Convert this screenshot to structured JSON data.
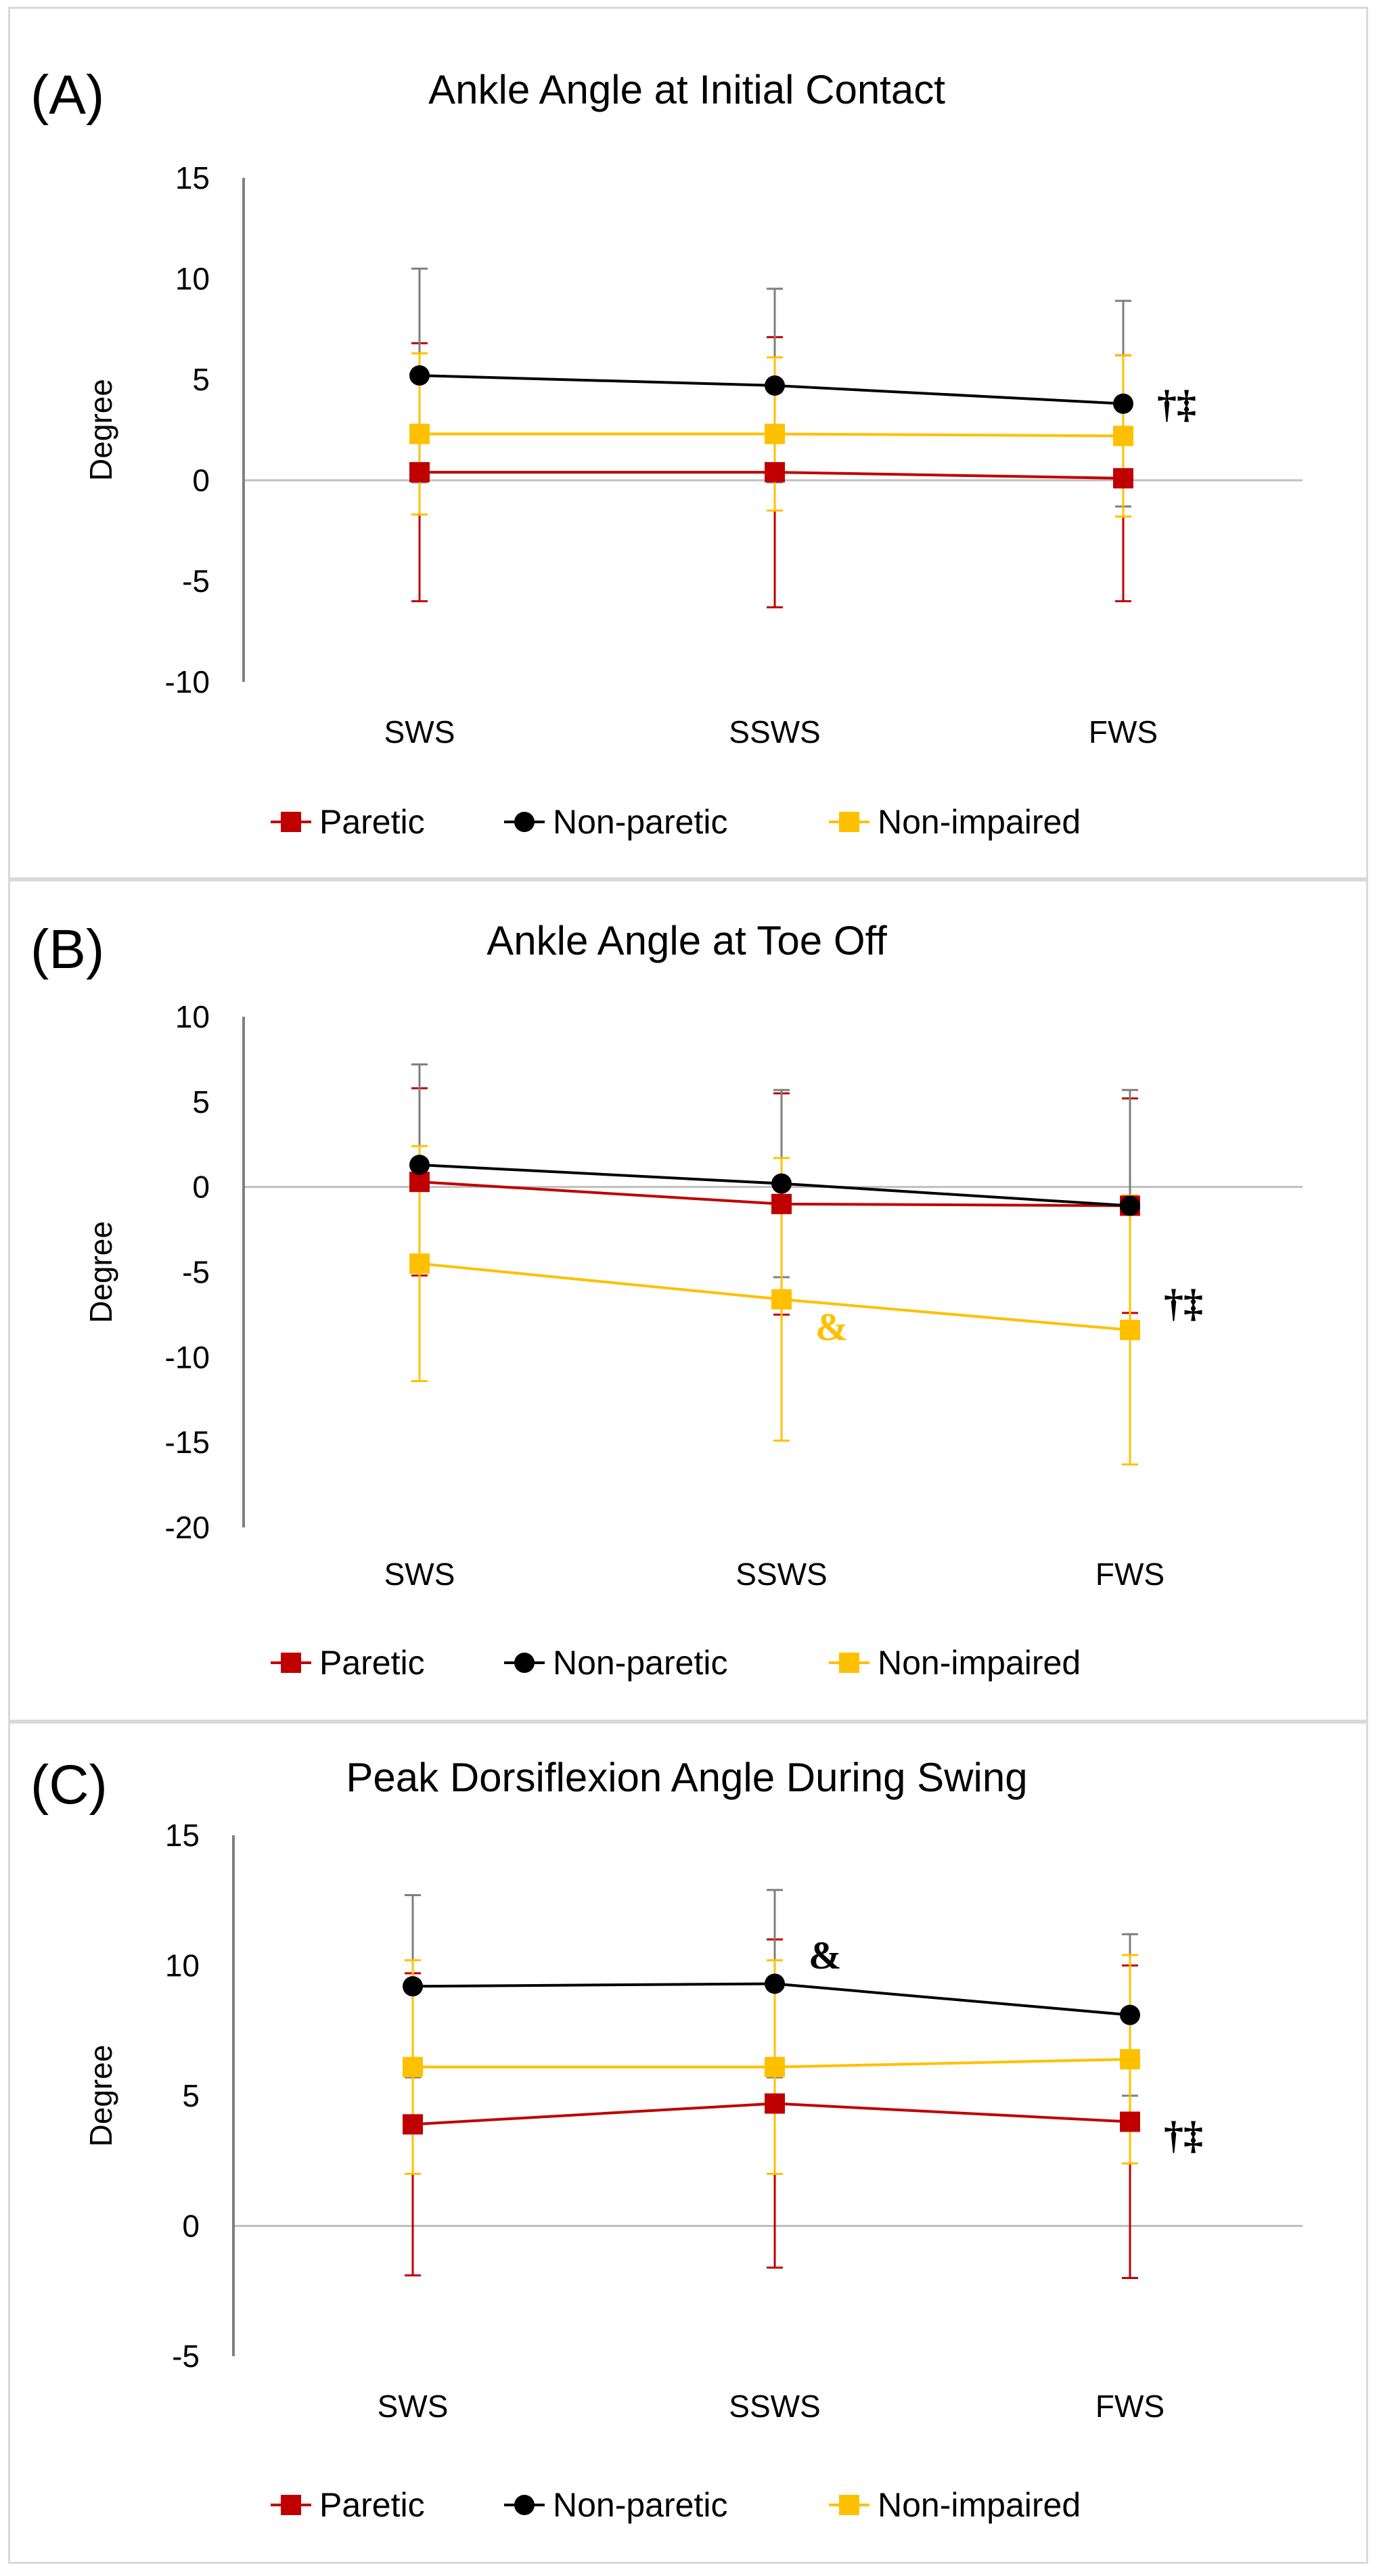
{
  "colors": {
    "paretic": "#c00000",
    "nonparetic": "#000000",
    "nonimpaired": "#ffc000",
    "zero_line": "#bfbfbf",
    "axis": "#808080",
    "errbar_nonparetic": "#7f7f7f"
  },
  "chart_data": [
    {
      "type": "line",
      "panel_label": "(A)",
      "title": "Ankle Angle at Initial Contact",
      "ylabel": "Degree",
      "categories": [
        "SWS",
        "SSWS",
        "FWS"
      ],
      "ylim": [
        -10,
        15
      ],
      "yticks": [
        15,
        10,
        5,
        0,
        -5,
        -10
      ],
      "series": [
        {
          "name": "Paretic",
          "key": "paretic",
          "marker": "square",
          "values": [
            0.4,
            0.4,
            0.1
          ],
          "err": [
            6.4,
            6.7,
            6.1
          ]
        },
        {
          "name": "Non-paretic",
          "key": "nonparetic",
          "marker": "circle",
          "values": [
            5.2,
            4.7,
            3.8
          ],
          "err": [
            5.3,
            4.8,
            5.1
          ]
        },
        {
          "name": "Non-impaired",
          "key": "nonimpaired",
          "marker": "square",
          "values": [
            2.3,
            2.3,
            2.2
          ],
          "err": [
            4.0,
            3.8,
            4.0
          ]
        }
      ],
      "annotations": [
        {
          "text": "†‡",
          "category": "FWS",
          "y": 3.8,
          "color": "#000000"
        }
      ]
    },
    {
      "type": "line",
      "panel_label": "(B)",
      "title": "Ankle Angle at Toe Off",
      "ylabel": "Degree",
      "categories": [
        "SWS",
        "SSWS",
        "FWS"
      ],
      "ylim": [
        -20,
        10
      ],
      "yticks": [
        10,
        5,
        0,
        -5,
        -10,
        -15,
        -20
      ],
      "series": [
        {
          "name": "Paretic",
          "key": "paretic",
          "marker": "square",
          "values": [
            0.3,
            -1.0,
            -1.1
          ],
          "err": [
            5.5,
            6.5,
            6.3
          ]
        },
        {
          "name": "Non-paretic",
          "key": "nonparetic",
          "marker": "circle",
          "values": [
            1.3,
            0.2,
            -1.1
          ],
          "err": [
            5.9,
            5.5,
            6.8
          ]
        },
        {
          "name": "Non-impaired",
          "key": "nonimpaired",
          "marker": "square",
          "values": [
            -4.5,
            -6.6,
            -8.4
          ],
          "err": [
            6.9,
            8.3,
            7.9
          ]
        }
      ],
      "annotations": [
        {
          "text": "&",
          "category": "SSWS",
          "y": -8.2,
          "color": "#ffc000"
        },
        {
          "text": "†‡",
          "category": "FWS",
          "y": -6.8,
          "color": "#000000"
        }
      ]
    },
    {
      "type": "line",
      "panel_label": "(C)",
      "title": "Peak Dorsiflexion Angle During Swing",
      "ylabel": "Degree",
      "categories": [
        "SWS",
        "SSWS",
        "FWS"
      ],
      "ylim": [
        -5,
        15
      ],
      "yticks": [
        15,
        10,
        5,
        0,
        -5
      ],
      "series": [
        {
          "name": "Paretic",
          "key": "paretic",
          "marker": "square",
          "values": [
            3.9,
            4.7,
            4.0
          ],
          "err": [
            5.8,
            6.3,
            6.0
          ]
        },
        {
          "name": "Non-paretic",
          "key": "nonparetic",
          "marker": "circle",
          "values": [
            9.2,
            9.3,
            8.1
          ],
          "err": [
            3.5,
            3.6,
            3.1
          ]
        },
        {
          "name": "Non-impaired",
          "key": "nonimpaired",
          "marker": "square",
          "values": [
            6.1,
            6.1,
            6.4
          ],
          "err": [
            4.1,
            4.1,
            4.0
          ]
        }
      ],
      "annotations": [
        {
          "text": "&",
          "category": "SSWS",
          "y": 10.4,
          "color": "#000000"
        },
        {
          "text": "†‡",
          "category": "FWS",
          "y": 3.5,
          "color": "#000000"
        }
      ]
    }
  ]
}
